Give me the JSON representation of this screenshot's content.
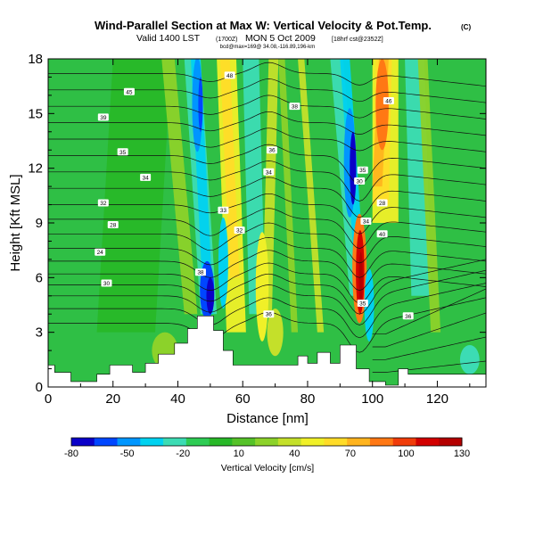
{
  "header": {
    "title": "Wind-Parallel Section at Max W: Vertical Velocity & Pot.Temp.",
    "title_mark": "(C)",
    "valid_line": "Valid 1400 LST",
    "valid_detail": "(1700Z)",
    "valid_date": "MON 5 Oct 2009",
    "valid_suffix": "[18hrf cst@2352Z]",
    "coords_line": "bcd@max=169@ 34.08,-116.89,196-km"
  },
  "chart_data": {
    "type": "heatmap",
    "xlabel": "Distance [nm]",
    "ylabel": "Height [Kft MSL]",
    "xlim": [
      0,
      135
    ],
    "ylim": [
      0,
      18
    ],
    "xticks": [
      "0",
      "20",
      "40",
      "60",
      "80",
      "100",
      "120"
    ],
    "yticks": [
      "0",
      "3",
      "6",
      "9",
      "12",
      "15",
      "18"
    ],
    "colorbar": {
      "label": "Vertical Velocity [cm/s]",
      "ticks": [
        "-80",
        "-50",
        "-20",
        "10",
        "40",
        "70",
        "100",
        "130"
      ],
      "range": [
        -80,
        130
      ],
      "colors": [
        "#0a00c8",
        "#0046ff",
        "#0096ff",
        "#00d2f0",
        "#3cdcb4",
        "#2ecc54",
        "#28b828",
        "#55c228",
        "#8cd22a",
        "#c4e02a",
        "#f0f028",
        "#ffdc28",
        "#ffb41e",
        "#ff7814",
        "#f03c0a",
        "#d20000",
        "#b40000"
      ]
    },
    "terrain": [
      [
        0,
        1.2
      ],
      [
        2,
        1.2
      ],
      [
        2,
        0.8
      ],
      [
        7,
        0.8
      ],
      [
        7,
        0.3
      ],
      [
        15,
        0.3
      ],
      [
        15,
        0.7
      ],
      [
        19,
        0.7
      ],
      [
        19,
        1.2
      ],
      [
        26,
        1.2
      ],
      [
        26,
        0.8
      ],
      [
        30,
        0.8
      ],
      [
        30,
        1.3
      ],
      [
        34,
        1.3
      ],
      [
        34,
        1.8
      ],
      [
        39,
        1.8
      ],
      [
        39,
        2.4
      ],
      [
        43,
        2.4
      ],
      [
        43,
        3.2
      ],
      [
        46,
        3.2
      ],
      [
        46,
        3.9
      ],
      [
        51,
        3.9
      ],
      [
        51,
        3.1
      ],
      [
        54,
        3.1
      ],
      [
        54,
        2.0
      ],
      [
        57,
        2.0
      ],
      [
        57,
        1.2
      ],
      [
        77,
        1.2
      ],
      [
        77,
        1.7
      ],
      [
        80,
        1.7
      ],
      [
        80,
        1.3
      ],
      [
        83,
        1.3
      ],
      [
        83,
        1.9
      ],
      [
        87,
        1.9
      ],
      [
        87,
        1.3
      ],
      [
        90,
        1.3
      ],
      [
        90,
        2.3
      ],
      [
        95,
        2.3
      ],
      [
        95,
        1.0
      ],
      [
        99,
        1.0
      ],
      [
        99,
        0.3
      ],
      [
        104,
        0.3
      ],
      [
        104,
        0.1
      ],
      [
        108,
        0.1
      ],
      [
        108,
        1.0
      ],
      [
        111,
        1.0
      ],
      [
        111,
        0.7
      ],
      [
        135,
        0.7
      ]
    ],
    "wind_cells": [
      {
        "x": 50,
        "z": 5.5,
        "w": -80
      },
      {
        "x": 95,
        "z": 12.0,
        "w": -70
      },
      {
        "x": 96,
        "z": 6.5,
        "w": 130
      },
      {
        "x": 102,
        "z": 14.5,
        "w": 60
      },
      {
        "x": 56,
        "z": 13.0,
        "w": 60
      },
      {
        "x": 68,
        "z": 6.5,
        "w": 45
      },
      {
        "x": 45,
        "z": 15.0,
        "w": -45
      }
    ],
    "isentrope_labels": [
      "48",
      "45",
      "46",
      "38",
      "39",
      "36",
      "35",
      "34",
      "34",
      "32",
      "30",
      "28",
      "33",
      "32",
      "24",
      "28",
      "35",
      "34",
      "40",
      "38",
      "30",
      "36",
      "35",
      "36"
    ]
  }
}
